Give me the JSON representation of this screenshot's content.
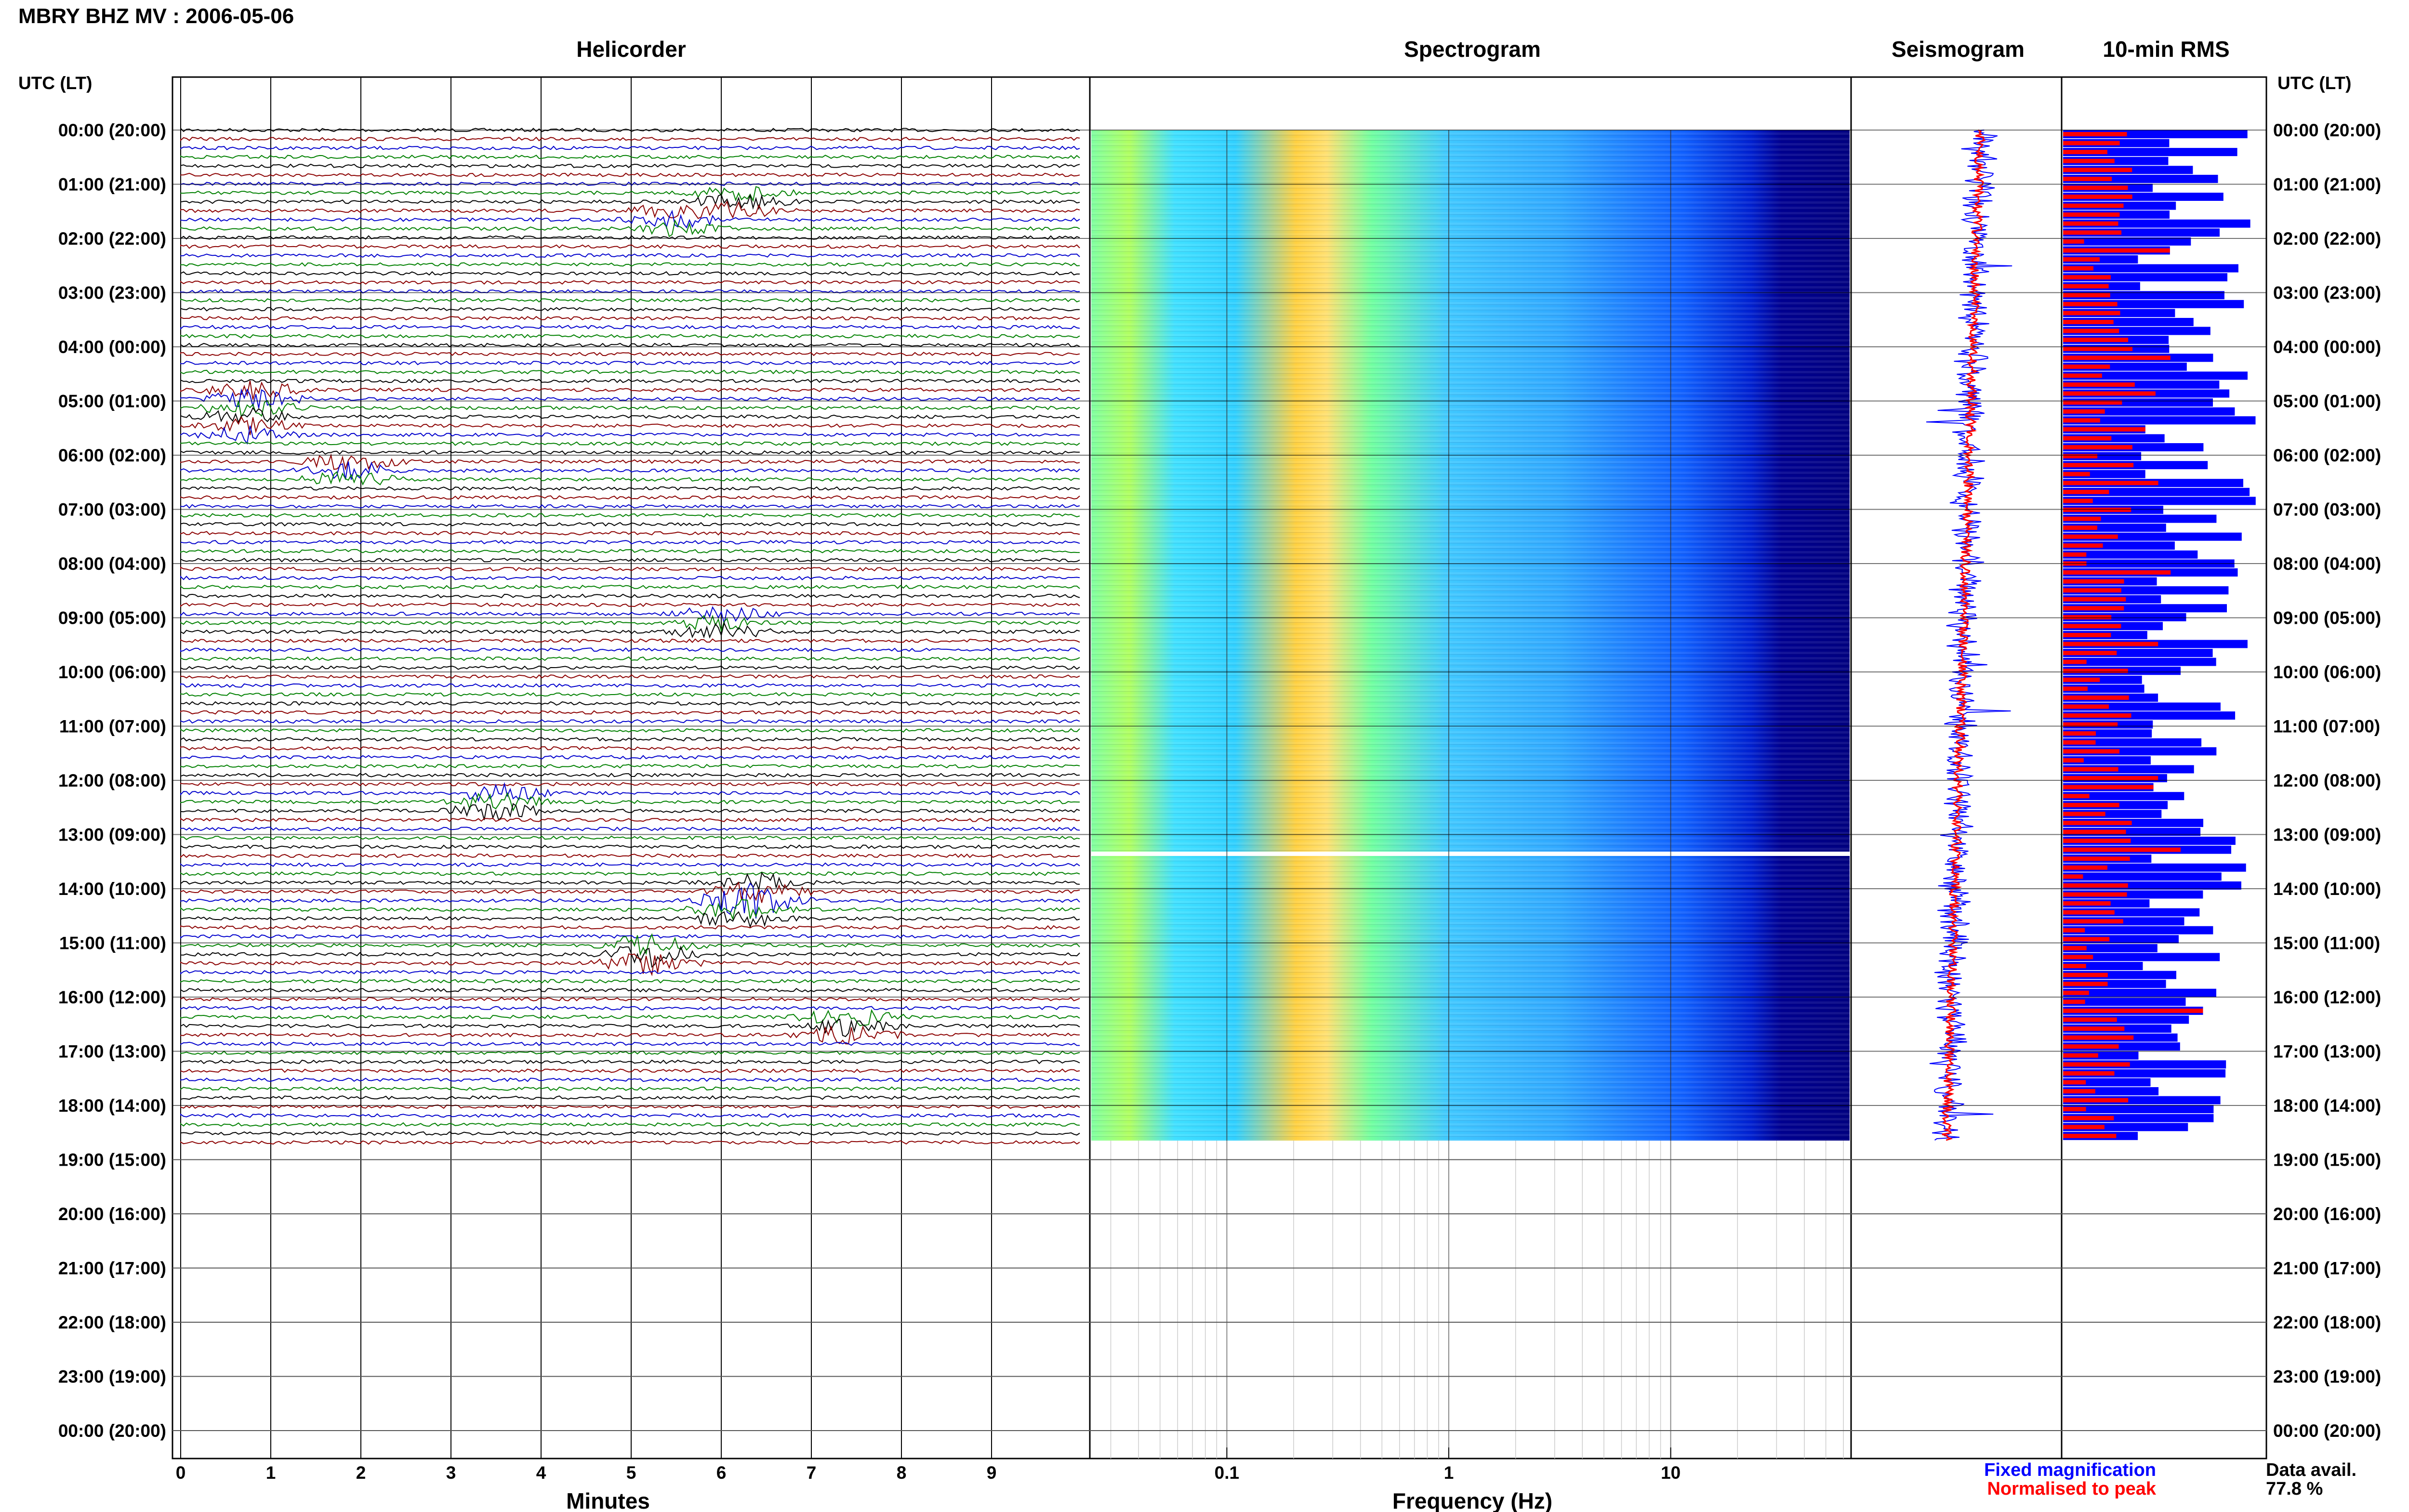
{
  "header": {
    "title": "MBRY BHZ MV : 2006-05-06"
  },
  "panels": {
    "helicorder": {
      "title": "Helicorder",
      "xlabel": "Minutes",
      "xticks": [
        "0",
        "1",
        "2",
        "3",
        "4",
        "5",
        "6",
        "7",
        "8",
        "9"
      ]
    },
    "spectrogram": {
      "title": "Spectrogram",
      "xlabel": "Frequency (Hz)",
      "xticks": [
        "0.1",
        "1",
        "10"
      ]
    },
    "seismogram": {
      "title": "Seismogram"
    },
    "rms": {
      "title": "10-min RMS"
    }
  },
  "axis": {
    "left_header": "UTC (LT)",
    "right_header": "UTC (LT)",
    "hour_labels": [
      "00:00 (20:00)",
      "01:00 (21:00)",
      "02:00 (22:00)",
      "03:00 (23:00)",
      "04:00 (00:00)",
      "05:00 (01:00)",
      "06:00 (02:00)",
      "07:00 (03:00)",
      "08:00 (04:00)",
      "09:00 (05:00)",
      "10:00 (06:00)",
      "11:00 (07:00)",
      "12:00 (08:00)",
      "13:00 (09:00)",
      "14:00 (10:00)",
      "15:00 (11:00)",
      "16:00 (12:00)",
      "17:00 (13:00)",
      "18:00 (14:00)",
      "19:00 (15:00)",
      "20:00 (16:00)",
      "21:00 (17:00)",
      "22:00 (18:00)",
      "23:00 (19:00)",
      "00:00 (20:00)"
    ]
  },
  "legend": {
    "fixed": "Fixed magnification",
    "normalised": "Normalised to peak",
    "fixed_color": "#0000ff",
    "normalised_color": "#ff0000"
  },
  "data_availability": {
    "label": "Data avail.",
    "value": "77.8 %"
  },
  "colors": {
    "trace_cycle": [
      "#000000",
      "#8b0000",
      "#0000cd",
      "#008000"
    ],
    "rms_fixed": "#0000ff",
    "rms_normalised": "#ff0000"
  }
}
